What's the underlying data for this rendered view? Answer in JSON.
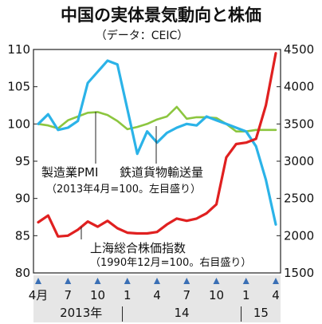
{
  "chart_data": {
    "type": "line",
    "title": "中国の実体景気動向と株価",
    "subtitle": "（データ：CEIC）",
    "x": [
      "2013-04",
      "2013-05",
      "2013-06",
      "2013-07",
      "2013-08",
      "2013-09",
      "2013-10",
      "2013-11",
      "2013-12",
      "2014-01",
      "2014-02",
      "2014-03",
      "2014-04",
      "2014-05",
      "2014-06",
      "2014-07",
      "2014-08",
      "2014-09",
      "2014-10",
      "2014-11",
      "2014-12",
      "2015-01",
      "2015-02",
      "2015-03",
      "2015-04"
    ],
    "x_tick_labels": [
      "4月",
      "7",
      "10",
      "1",
      "4",
      "7",
      "10",
      "1",
      "4"
    ],
    "x_year_labels": [
      "2013年",
      "14",
      "15"
    ],
    "y_left": {
      "ticks": [
        "110",
        "105",
        "100",
        "95",
        "90",
        "85",
        "80"
      ],
      "ylim": [
        80,
        110
      ]
    },
    "y_right": {
      "ticks": [
        "4500",
        "4000",
        "3500",
        "3000",
        "2500",
        "2000",
        "1500"
      ],
      "ylim": [
        1500,
        4500
      ]
    },
    "series": [
      {
        "name": "製造業PMI",
        "note": "（2013年4月=100。左目盛り）",
        "axis": "left",
        "color": "#8cc63f",
        "values": [
          100.0,
          99.8,
          99.4,
          100.5,
          101.0,
          101.5,
          101.6,
          101.2,
          100.4,
          99.3,
          99.6,
          100.0,
          100.6,
          101.0,
          102.3,
          100.7,
          100.9,
          100.9,
          100.8,
          100.0,
          99.0,
          99.0,
          99.2,
          99.2,
          99.2
        ]
      },
      {
        "name": "鉄道貨物輸送量",
        "note": "",
        "axis": "left",
        "color": "#2bb3e8",
        "values": [
          100.0,
          101.3,
          99.2,
          99.5,
          100.4,
          105.5,
          107.0,
          108.5,
          108.0,
          102.0,
          96.0,
          99.0,
          97.5,
          98.8,
          99.5,
          100.0,
          99.8,
          101.0,
          100.5,
          100.0,
          99.5,
          99.0,
          97.0,
          92.5,
          86.5
        ]
      },
      {
        "name": "上海総合株価指数",
        "note": "（1990年12月=100。右目盛り）",
        "axis": "right",
        "color": "#e02020",
        "values": [
          2180,
          2270,
          1990,
          2000,
          2080,
          2190,
          2120,
          2200,
          2100,
          2040,
          2030,
          2030,
          2050,
          2150,
          2230,
          2200,
          2230,
          2300,
          2420,
          3050,
          3230,
          3250,
          3300,
          3750,
          4450
        ]
      }
    ],
    "grid": false,
    "legend": "inline"
  }
}
